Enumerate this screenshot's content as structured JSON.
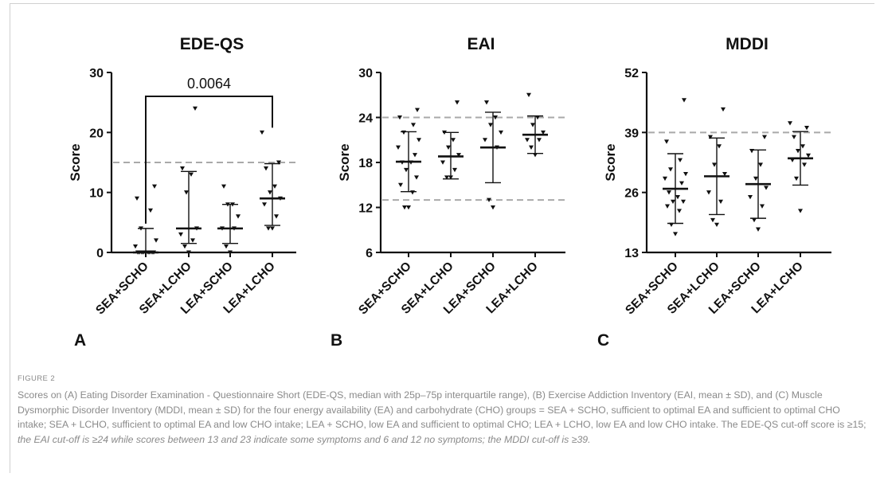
{
  "figure": {
    "caption_label": "FIGURE 2",
    "caption_text": "Scores on (A) Eating Disorder Examination - Questionnaire Short (EDE-QS, median with 25p–75p interquartile range), (B) Exercise Addiction Inventory (EAI, mean ± SD), and (C) Muscle Dysmorphic Disorder Inventory (MDDI, mean ± SD) for the four energy availability (EA) and carbohydrate (CHO) groups = SEA + SCHO, sufficient to optimal EA and sufficient to optimal CHO intake; SEA + LCHO, sufficient to optimal EA and low CHO intake; LEA + SCHO, low EA and sufficient to optimal CHO; LEA + LCHO, low EA and low CHO intake. The EDE-QS cut-off score is ≥15;",
    "caption_text_italic": " the EAI cut-off is ≥24 while scores between 13 and 23 indicate some symptoms and 6 and 12 no symptoms; the MDDI cut-off is ≥39."
  },
  "chart_data": [
    {
      "type": "scatter",
      "panel_label": "A",
      "title": "EDE-QS",
      "ylabel": "Score",
      "ylim": [
        0,
        30
      ],
      "yticks": [
        "0",
        "10",
        "20",
        "30"
      ],
      "categories": [
        "SEA+SCHO",
        "SEA+LCHO",
        "LEA+SCHO",
        "LEA+LCHO"
      ],
      "cutoffs": [
        15
      ],
      "significance": {
        "label": "0.0064",
        "from": "SEA+SCHO",
        "to": "LEA+LCHO"
      },
      "summary": [
        {
          "center": 0,
          "low": 0,
          "high": 4
        },
        {
          "center": 4,
          "low": 1.5,
          "high": 13.5
        },
        {
          "center": 4,
          "low": 1.5,
          "high": 8
        },
        {
          "center": 9,
          "low": 4.5,
          "high": 14.8
        }
      ],
      "points": [
        [
          0,
          0,
          0,
          0,
          0,
          0,
          0,
          0,
          0,
          1,
          2,
          4,
          7,
          9,
          11
        ],
        [
          0,
          1,
          2,
          3,
          4,
          10,
          13,
          14,
          24
        ],
        [
          0,
          1,
          4,
          4,
          6,
          8,
          8,
          11
        ],
        [
          4,
          4,
          6,
          8,
          9,
          10,
          11,
          14,
          15,
          20
        ]
      ]
    },
    {
      "type": "scatter",
      "panel_label": "B",
      "title": "EAI",
      "ylabel": "Score",
      "ylim": [
        6,
        30
      ],
      "yticks": [
        "6",
        "12",
        "18",
        "24",
        "30"
      ],
      "categories": [
        "SEA+SCHO",
        "SEA+LCHO",
        "LEA+SCHO",
        "LEA+LCHO"
      ],
      "cutoffs": [
        24,
        13
      ],
      "summary": [
        {
          "center": 18.1,
          "low": 14.1,
          "high": 22.1
        },
        {
          "center": 18.8,
          "low": 15.8,
          "high": 22
        },
        {
          "center": 20,
          "low": 15.3,
          "high": 24.7
        },
        {
          "center": 21.7,
          "low": 19.2,
          "high": 24.2
        }
      ],
      "points": [
        [
          12,
          12,
          14,
          15,
          16,
          17,
          18,
          18,
          19,
          20,
          21,
          22,
          23,
          24,
          25
        ],
        [
          16,
          16,
          17,
          18,
          19,
          20,
          21,
          22,
          26
        ],
        [
          12,
          13,
          20,
          21,
          22,
          23,
          24,
          26
        ],
        [
          19,
          20,
          21,
          21,
          22,
          23,
          24,
          27
        ]
      ]
    },
    {
      "type": "scatter",
      "panel_label": "C",
      "title": "MDDI",
      "ylabel": "Score",
      "ylim": [
        13,
        52
      ],
      "yticks": [
        "13",
        "26",
        "39",
        "52"
      ],
      "categories": [
        "SEA+SCHO",
        "SEA+LCHO",
        "LEA+SCHO",
        "LEA+LCHO"
      ],
      "cutoffs": [
        39
      ],
      "summary": [
        {
          "center": 26.8,
          "low": 19.3,
          "high": 34.4
        },
        {
          "center": 29.5,
          "low": 21.2,
          "high": 37.8
        },
        {
          "center": 27.8,
          "low": 20.4,
          "high": 35.2
        },
        {
          "center": 33.4,
          "low": 27.6,
          "high": 39.2
        }
      ],
      "points": [
        [
          17,
          19,
          22,
          23,
          24,
          24,
          25,
          26,
          28,
          29,
          30,
          31,
          33,
          37,
          46
        ],
        [
          19,
          20,
          24,
          26,
          30,
          32,
          36,
          38,
          44
        ],
        [
          18,
          20,
          23,
          25,
          27,
          29,
          32,
          35,
          38
        ],
        [
          22,
          29,
          32,
          33,
          34,
          35,
          36,
          38,
          40,
          41
        ]
      ]
    }
  ]
}
